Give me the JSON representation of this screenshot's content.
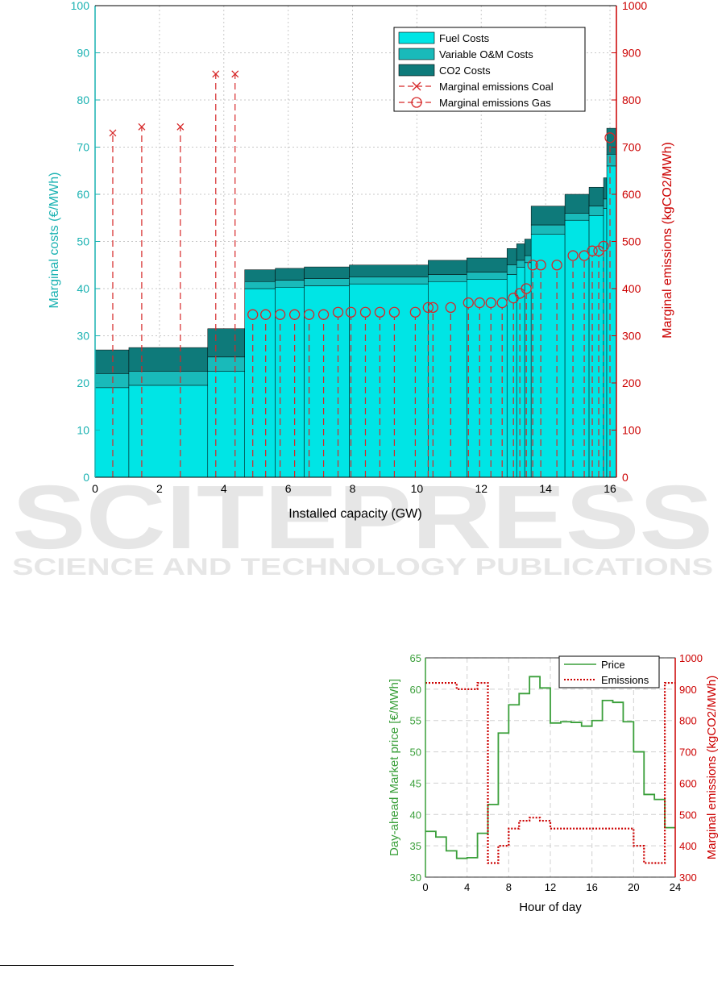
{
  "watermark": {
    "big": "SCITEPRESS",
    "small": "SCIENCE AND TECHNOLOGY PUBLICATIONS"
  },
  "chart_data": [
    {
      "type": "area",
      "xlabel": "Installed capacity (GW)",
      "ylabel": "Marginal costs (€/MWh)",
      "y2label": "Marginal emissions (kgCO2/MWh)",
      "xlim": [
        0,
        16.2
      ],
      "ylim": [
        0,
        100
      ],
      "y2lim": [
        0,
        1000
      ],
      "x_ticks": [
        0,
        2,
        4,
        6,
        8,
        10,
        12,
        14,
        16
      ],
      "y_ticks": [
        0,
        10,
        20,
        30,
        40,
        50,
        60,
        70,
        80,
        90,
        100
      ],
      "y2_ticks": [
        0,
        100,
        200,
        300,
        400,
        500,
        600,
        700,
        800,
        900,
        1000
      ],
      "grid": true,
      "legend_position": "top-right",
      "colors": {
        "fuel": "#00e5e5",
        "om": "#19baba",
        "co2": "#0e7a7a",
        "emissions": "#d62728",
        "left_axis": "#1ab2b2",
        "right_axis": "#cc0000"
      },
      "legend": [
        "Fuel Costs",
        "Variable O&M Costs",
        "CO2 Costs",
        "Marginal emissions Coal",
        "Marginal emissions Gas"
      ],
      "steps": [
        {
          "x0": 0,
          "x1": 1.05,
          "fuel": 19,
          "om": 3,
          "co2": 5
        },
        {
          "x0": 1.05,
          "x1": 3.5,
          "fuel": 19.5,
          "om": 3,
          "co2": 5
        },
        {
          "x0": 3.5,
          "x1": 4.65,
          "fuel": 22.5,
          "om": 3,
          "co2": 6
        },
        {
          "x0": 4.65,
          "x1": 5.6,
          "fuel": 40,
          "om": 1.5,
          "co2": 2.5
        },
        {
          "x0": 5.6,
          "x1": 6.5,
          "fuel": 40.3,
          "om": 1.5,
          "co2": 2.5
        },
        {
          "x0": 6.5,
          "x1": 7.9,
          "fuel": 40.6,
          "om": 1.5,
          "co2": 2.5
        },
        {
          "x0": 7.9,
          "x1": 10.35,
          "fuel": 41,
          "om": 1.5,
          "co2": 2.5
        },
        {
          "x0": 10.35,
          "x1": 11.55,
          "fuel": 41.5,
          "om": 1.5,
          "co2": 3
        },
        {
          "x0": 11.55,
          "x1": 12.8,
          "fuel": 42,
          "om": 1.5,
          "co2": 3
        },
        {
          "x0": 12.8,
          "x1": 13.1,
          "fuel": 43,
          "om": 2,
          "co2": 3.5
        },
        {
          "x0": 13.1,
          "x1": 13.35,
          "fuel": 44.5,
          "om": 1.5,
          "co2": 3.5
        },
        {
          "x0": 13.35,
          "x1": 13.55,
          "fuel": 45.5,
          "om": 1.5,
          "co2": 3.5
        },
        {
          "x0": 13.55,
          "x1": 14.6,
          "fuel": 51.5,
          "om": 2,
          "co2": 4
        },
        {
          "x0": 14.6,
          "x1": 15.35,
          "fuel": 54.5,
          "om": 1.5,
          "co2": 4
        },
        {
          "x0": 15.35,
          "x1": 15.8,
          "fuel": 55.5,
          "om": 2,
          "co2": 4
        },
        {
          "x0": 15.8,
          "x1": 15.9,
          "fuel": 57,
          "om": 2,
          "co2": 4.5
        },
        {
          "x0": 15.9,
          "x1": 16.2,
          "fuel": 66,
          "om": 2.5,
          "co2": 5.5
        }
      ],
      "coal_emissions": {
        "x": [
          0.55,
          1.45,
          2.65,
          3.75,
          4.35
        ],
        "y": [
          730,
          743,
          743,
          855,
          855
        ]
      },
      "gas_emissions": {
        "x": [
          4.9,
          5.3,
          5.75,
          6.2,
          6.65,
          7.1,
          7.55,
          7.95,
          8.4,
          8.85,
          9.3,
          9.95,
          10.35,
          10.5,
          11.05,
          11.6,
          11.95,
          12.3,
          12.65,
          13.0,
          13.2,
          13.4,
          13.6,
          13.85,
          14.35,
          14.85,
          15.2,
          15.45,
          15.65,
          15.8,
          16.0
        ],
        "y": [
          345,
          345,
          345,
          345,
          345,
          345,
          350,
          350,
          350,
          350,
          350,
          350,
          360,
          360,
          360,
          370,
          370,
          370,
          370,
          380,
          390,
          400,
          450,
          450,
          450,
          470,
          470,
          480,
          480,
          490,
          720
        ]
      }
    },
    {
      "type": "line",
      "xlabel": "Hour of day",
      "ylabel": "Day-ahead Market price [€/MWh]",
      "y2label": "Marginal emissions (kgCO2/MWh)",
      "xlim": [
        0,
        24
      ],
      "ylim": [
        30,
        65
      ],
      "y2lim": [
        300,
        1000
      ],
      "x_ticks": [
        0,
        4,
        8,
        12,
        16,
        20,
        24
      ],
      "y_ticks": [
        30,
        35,
        40,
        45,
        50,
        55,
        60,
        65
      ],
      "y2_ticks": [
        300,
        400,
        500,
        600,
        700,
        800,
        900,
        1000
      ],
      "grid": true,
      "legend_position": "top-right",
      "colors": {
        "price": "#3a9f3a",
        "emissions": "#cc0000"
      },
      "series": [
        {
          "name": "Price",
          "style": "solid-step",
          "values": [
            37.3,
            36.4,
            34.2,
            33.0,
            33.1,
            37.0,
            41.6,
            53.0,
            57.5,
            59.3,
            62.0,
            60.2,
            54.6,
            54.8,
            54.7,
            54.1,
            55.0,
            58.2,
            57.9,
            54.8,
            50.0,
            43.2,
            42.4,
            37.9
          ]
        },
        {
          "name": "Emissions",
          "style": "dotted-step",
          "values": [
            920,
            920,
            920,
            900,
            900,
            920,
            345,
            400,
            455,
            480,
            490,
            480,
            455,
            455,
            455,
            455,
            455,
            455,
            455,
            455,
            400,
            345,
            345,
            920
          ]
        }
      ]
    }
  ]
}
